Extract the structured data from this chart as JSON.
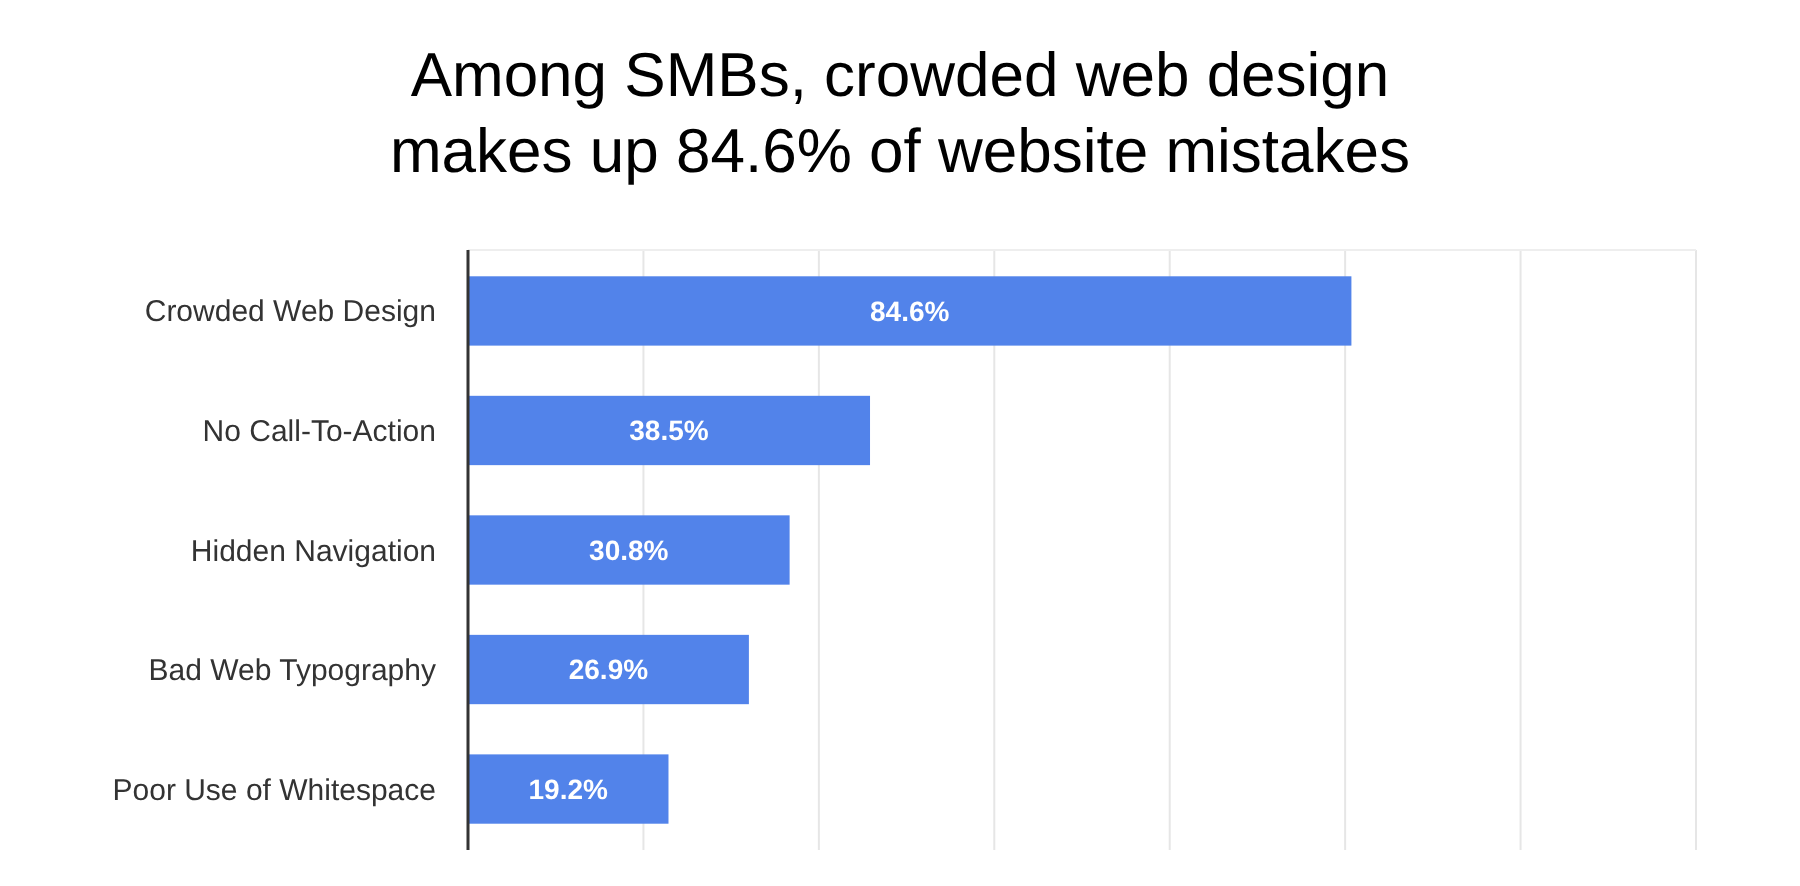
{
  "chart_data": {
    "type": "bar",
    "orientation": "horizontal",
    "title": "Among SMBs, crowded web design\nmakes up 84.6% of website mistakes",
    "categories": [
      "Crowded Web Design",
      "No Call-To-Action",
      "Hidden Navigation",
      "Bad Web Typography",
      "Poor Use of Whitespace"
    ],
    "values": [
      84.6,
      38.5,
      30.8,
      26.9,
      19.2
    ],
    "value_labels": [
      "84.6%",
      "38.5%",
      "30.8%",
      "26.9%",
      "19.2%"
    ],
    "color": "#5283ea",
    "xlim": [
      0,
      117.6
    ],
    "xticks": [
      {
        "value": 0,
        "label": null
      },
      {
        "value": 16.8,
        "label": null
      },
      {
        "value": 33.6,
        "label": null
      },
      {
        "value": 50.4,
        "label": null
      },
      {
        "value": 67.2,
        "label": null
      },
      {
        "value": 84,
        "label": null
      },
      {
        "value": 100.8,
        "label": null
      },
      {
        "value": 117.6,
        "label": null
      }
    ],
    "grid": "x",
    "tick_labels": "y"
  }
}
